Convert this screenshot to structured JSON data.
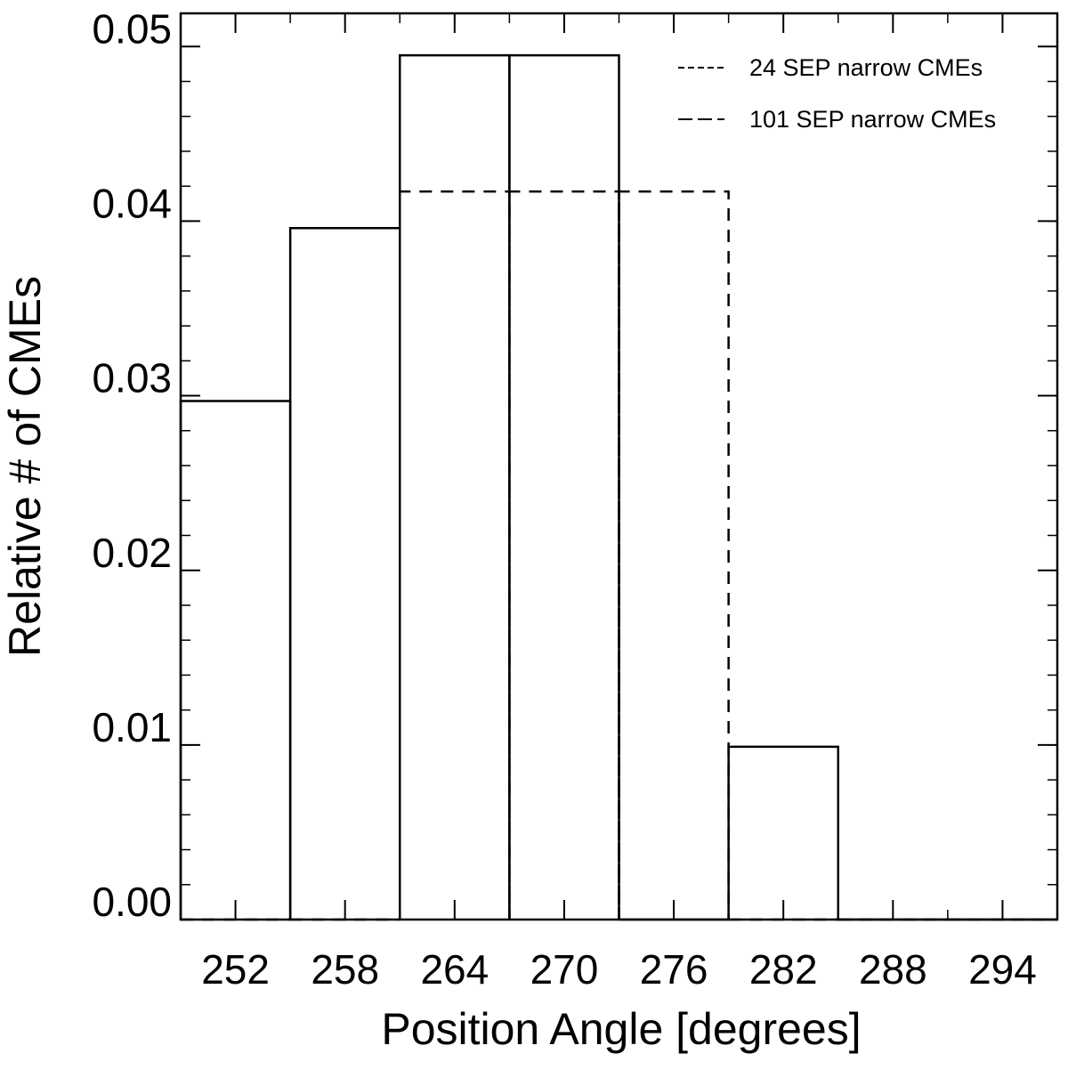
{
  "chart_data": {
    "type": "histogram",
    "x_label": "Position Angle [degrees]",
    "y_label": "Relative # of CMEs",
    "bins": [
      249,
      255,
      261,
      267,
      273,
      279,
      285,
      291,
      297
    ],
    "series": [
      {
        "name": "24 SEP narrow CMEs",
        "color": "#000000",
        "dash": "14,10",
        "values": [
          0,
          0,
          0.0417,
          0.0417,
          0.0417,
          0,
          0,
          0
        ]
      },
      {
        "name": "101 SEP narrow CMEs",
        "color": "#000000",
        "values": [
          0.0297,
          0.0396,
          0.0495,
          0.0495,
          0,
          0.0099,
          0,
          0
        ]
      }
    ],
    "xlim": [
      249,
      297
    ],
    "xticks": [
      252,
      258,
      264,
      270,
      276,
      282,
      288,
      294
    ],
    "ylim": [
      0,
      0.0519
    ],
    "yticks": [
      {
        "value": 0,
        "label": "0.00"
      },
      0.01,
      0.02,
      0.03,
      0.04,
      0.05
    ],
    "legend": "upper right"
  }
}
